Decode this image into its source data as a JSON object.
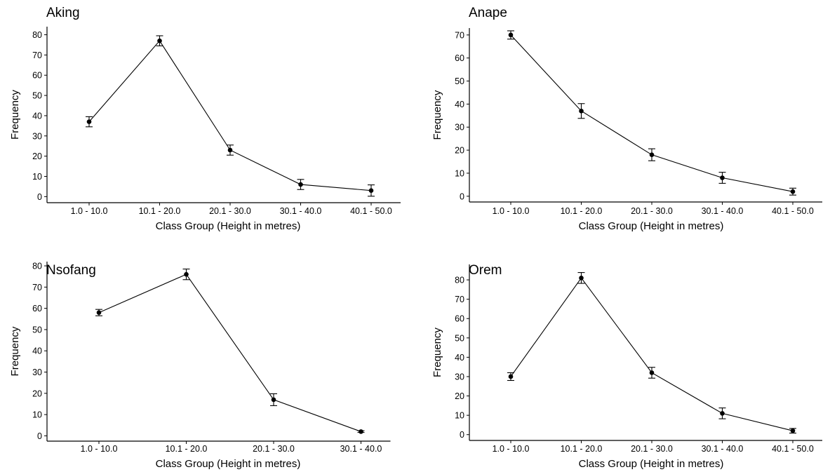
{
  "chart_data": [
    {
      "type": "line",
      "title": "Aking",
      "xlabel": "Class Group (Height in metres)",
      "ylabel": "Frequency",
      "categories": [
        "1.0 - 10.0",
        "10.1 - 20.0",
        "20.1 - 30.0",
        "30.1 - 40.0",
        "40.1 - 50.0"
      ],
      "values": [
        37,
        77,
        23,
        6,
        3
      ],
      "error": [
        2.5,
        2.5,
        2.5,
        2.5,
        2.8
      ],
      "yticks": [
        0,
        10,
        20,
        30,
        40,
        50,
        60,
        70,
        80
      ],
      "ylim": [
        -3,
        84
      ],
      "grid": false
    },
    {
      "type": "line",
      "title": "Anape",
      "xlabel": "Class Group (Height in metres)",
      "ylabel": "Frequency",
      "categories": [
        "1.0 - 10.0",
        "10.1 - 20.0",
        "20.1 - 30.0",
        "30.1 - 40.0",
        "40.1 - 50.0"
      ],
      "values": [
        70,
        37,
        18,
        8,
        2
      ],
      "error": [
        1.8,
        3.2,
        2.6,
        2.4,
        1.5
      ],
      "yticks": [
        0,
        10,
        20,
        30,
        40,
        50,
        60,
        70
      ],
      "ylim": [
        -2.5,
        73
      ],
      "grid": false
    },
    {
      "type": "line",
      "title": "Nsofang",
      "xlabel": "Class Group (Height in metres)",
      "ylabel": "Frequency",
      "categories": [
        "1.0 - 10.0",
        "10.1 - 20.0",
        "20.1 - 30.0",
        "30.1 - 40.0"
      ],
      "values": [
        58,
        76,
        17,
        2
      ],
      "error": [
        1.5,
        2.5,
        2.8,
        0.4
      ],
      "yticks": [
        0,
        10,
        20,
        30,
        40,
        50,
        60,
        70,
        80
      ],
      "ylim": [
        -2.5,
        82
      ],
      "grid": false
    },
    {
      "type": "line",
      "title": "Orem",
      "xlabel": "Class Group (Height in metres)",
      "ylabel": "Frequency",
      "categories": [
        "1.0 - 10.0",
        "10.1 - 20.0",
        "20.1 - 30.0",
        "30.1 - 40.0",
        "40.1 - 50.0"
      ],
      "values": [
        30,
        81,
        32,
        11,
        2
      ],
      "error": [
        2.0,
        2.8,
        2.8,
        2.8,
        1.2
      ],
      "yticks": [
        0,
        10,
        20,
        30,
        40,
        50,
        60,
        70,
        80
      ],
      "ylim": [
        -3,
        88
      ],
      "grid": false
    }
  ]
}
